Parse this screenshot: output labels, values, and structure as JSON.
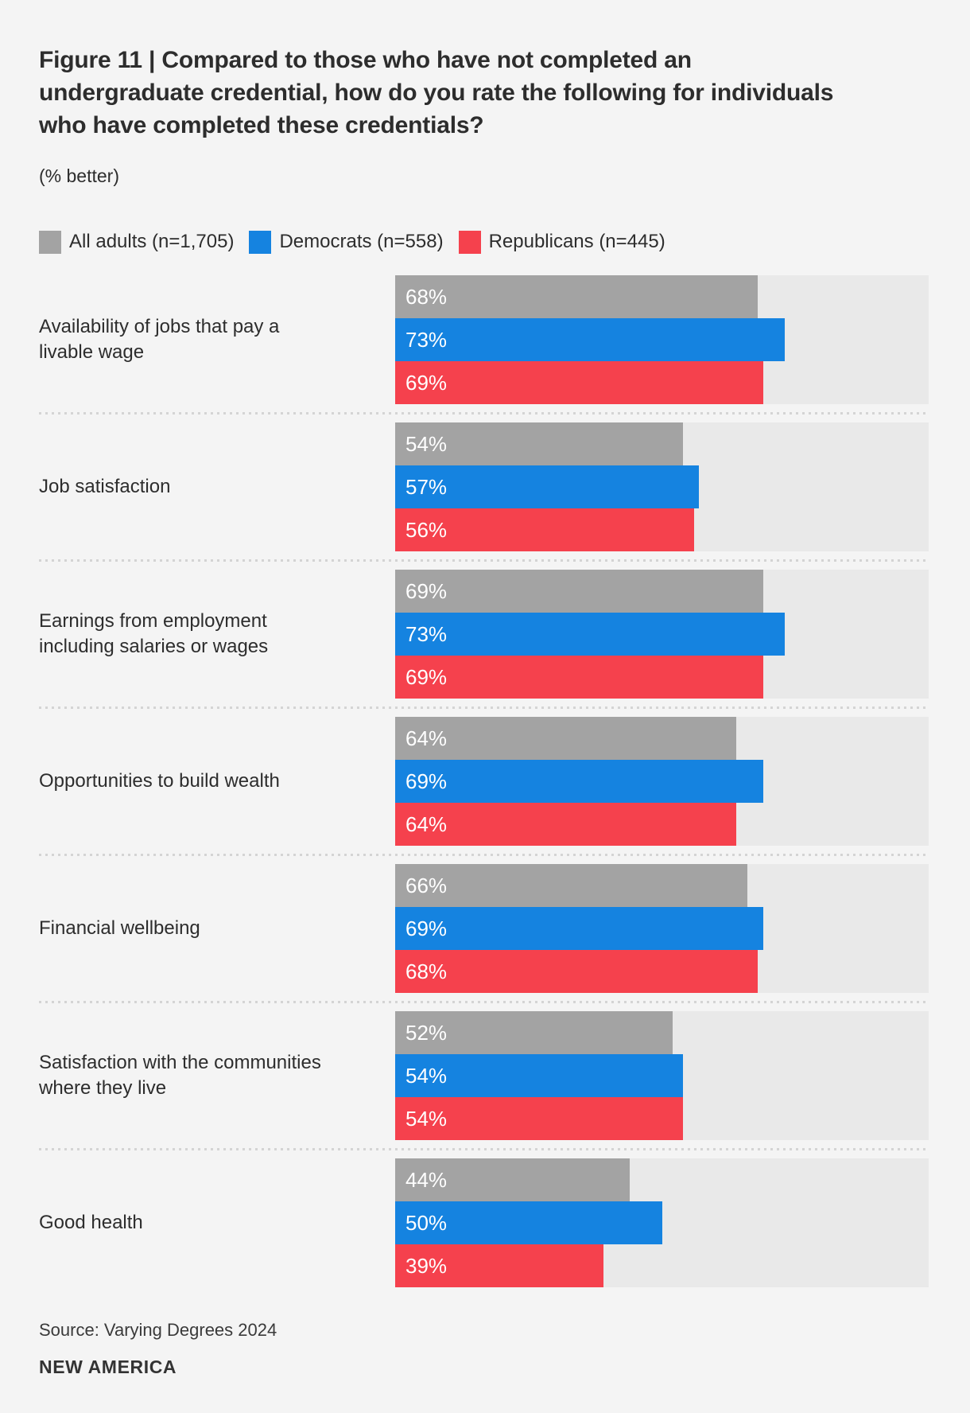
{
  "header": {
    "title": "Figure 11 | Compared to those who have not completed an undergraduate credential, how do you rate the following for individuals who have completed these credentials?",
    "subtitle": "(% better)"
  },
  "footer": {
    "source": "Source: Varying Degrees 2024",
    "brand": "NEW AMERICA"
  },
  "colors": {
    "background": "#f4f4f4",
    "text": "#2d2d2d",
    "track": "#e9e9e9",
    "separator": "#d4d4d4",
    "value_label": "#ffffff",
    "all_adults": "#a3a3a3",
    "democrats": "#1583e0",
    "republicans": "#f5414d"
  },
  "chart_data": {
    "type": "bar",
    "orientation": "horizontal",
    "unit": "%",
    "xlim": [
      0,
      100
    ],
    "grid": false,
    "legend_position": "top",
    "value_labels": "inside-left",
    "categories": [
      "Availability of jobs that pay a livable wage",
      "Job satisfaction",
      "Earnings from employment including salaries or wages",
      "Opportunities to build wealth",
      "Financial wellbeing",
      "Satisfaction with the communities where they live",
      "Good health"
    ],
    "series": [
      {
        "id": "all-adults",
        "name": "All adults (n=1,705)",
        "color": "#a3a3a3",
        "values": [
          68,
          54,
          69,
          64,
          66,
          52,
          44
        ]
      },
      {
        "id": "democrats",
        "name": "Democrats (n=558)",
        "color": "#1583e0",
        "values": [
          73,
          57,
          73,
          69,
          69,
          54,
          50
        ]
      },
      {
        "id": "republicans",
        "name": "Republicans (n=445)",
        "color": "#f5414d",
        "values": [
          69,
          56,
          69,
          64,
          68,
          54,
          39
        ]
      }
    ]
  }
}
